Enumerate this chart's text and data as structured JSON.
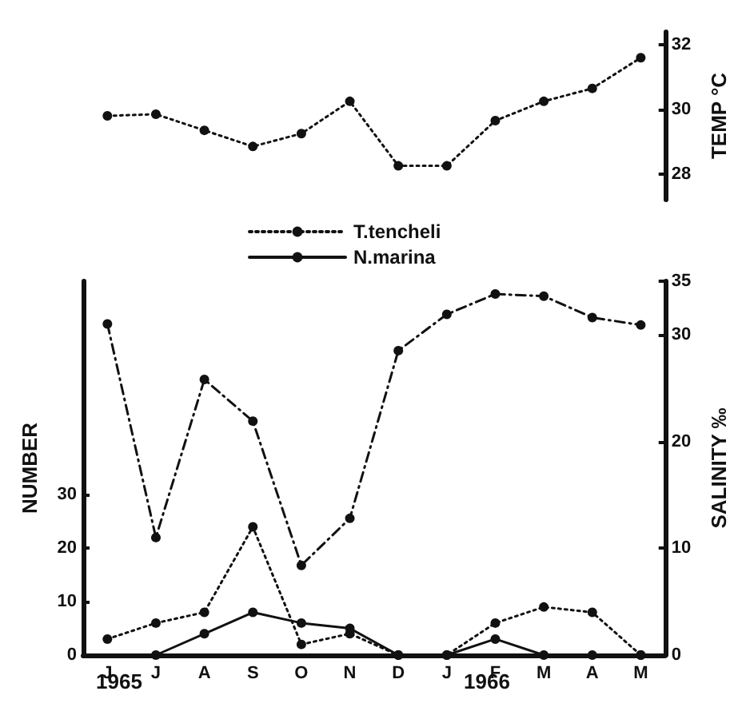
{
  "chart_data": [
    {
      "type": "line",
      "categories": [
        null,
        null,
        null,
        null,
        null,
        null,
        null,
        null,
        null,
        null,
        null,
        null
      ],
      "ylabel": "TEMP °C",
      "ylim": [
        27.2,
        32.4
      ],
      "yticks": [
        28,
        30,
        32
      ],
      "tick_labels": "y",
      "grid": false,
      "marker": "circle",
      "series": [
        {
          "color": "#111111",
          "line_style": "dotted",
          "values": [
            29.8,
            29.85,
            29.35,
            28.85,
            29.25,
            30.25,
            28.25,
            28.25,
            29.65,
            30.25,
            30.65,
            31.6
          ]
        }
      ]
    },
    {
      "type": "line",
      "categories": [
        "J",
        "J",
        "A",
        "S",
        "O",
        "N",
        "D",
        "J",
        "F",
        "M",
        "A",
        "M"
      ],
      "ylabel": "NUMBER",
      "y2label": "SALINITY ‰",
      "ylim": [
        0,
        70
      ],
      "yticks": [
        0,
        10,
        20,
        30
      ],
      "y2lim": [
        0,
        35
      ],
      "y2ticks": [
        0,
        10,
        20,
        30,
        35
      ],
      "annotations": [
        "1965",
        "1966"
      ],
      "legend": "top",
      "grid": false,
      "marker": "circle",
      "series": [
        {
          "name": "T.tencheli",
          "color": "#111111",
          "line_style": "dotted",
          "values": [
            3,
            6,
            8,
            24,
            2,
            4,
            0,
            0,
            6,
            9,
            8,
            0
          ]
        },
        {
          "name": "N.marina",
          "color": "#111111",
          "line_style": "solid",
          "values": [
            null,
            0,
            4,
            8,
            6,
            5,
            0,
            0,
            3,
            0,
            0,
            0
          ]
        },
        {
          "color": "#111111",
          "axis": "y2",
          "line_style": "dashed",
          "values": [
            31,
            11,
            25.8,
            21.9,
            8.4,
            12.8,
            28.5,
            31.9,
            33.8,
            33.6,
            31.6,
            30.9
          ]
        }
      ]
    }
  ]
}
